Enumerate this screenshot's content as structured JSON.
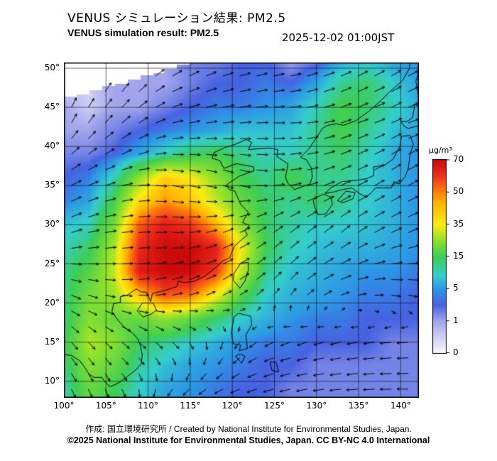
{
  "header": {
    "title_ja": "VENUS シミュレーション結果: PM2.5",
    "title_en": "VENUS simulation result: PM2.5",
    "timestamp": "2025-12-02 01:00JST"
  },
  "footer": {
    "credit": "作成: 国立環境研究所 / Created by National Institute for Environmental Studies, Japan.",
    "license": "©2025 National Institute for Environmental Studies, Japan. CC BY-NC 4.0 International"
  },
  "colorbar": {
    "unit": "µg/m³",
    "ticks": [
      "70",
      "50",
      "35",
      "15",
      "5",
      "1",
      "0"
    ],
    "tick_values_bottom_up": [
      0,
      1,
      5,
      15,
      35,
      50,
      70
    ],
    "stops": [
      {
        "v": 0,
        "c": [
          250,
          250,
          253
        ]
      },
      {
        "v": 1,
        "c": [
          162,
          165,
          235
        ]
      },
      {
        "v": 3,
        "c": [
          70,
          98,
          225
        ]
      },
      {
        "v": 5,
        "c": [
          45,
          150,
          230
        ]
      },
      {
        "v": 9,
        "c": [
          52,
          205,
          205
        ]
      },
      {
        "v": 15,
        "c": [
          62,
          205,
          85
        ]
      },
      {
        "v": 25,
        "c": [
          140,
          225,
          45
        ]
      },
      {
        "v": 35,
        "c": [
          252,
          235,
          20
        ]
      },
      {
        "v": 45,
        "c": [
          255,
          180,
          0
        ]
      },
      {
        "v": 50,
        "c": [
          255,
          130,
          10
        ]
      },
      {
        "v": 60,
        "c": [
          238,
          50,
          30
        ]
      },
      {
        "v": 70,
        "c": [
          205,
          10,
          10
        ]
      }
    ]
  },
  "map": {
    "lat_ticks": [
      "50°",
      "45°",
      "40°",
      "35°",
      "30°",
      "25°",
      "20°",
      "15°",
      "10°"
    ],
    "lon_ticks": [
      "100°",
      "105°",
      "110°",
      "115°",
      "120°",
      "125°",
      "130°",
      "135°",
      "140°"
    ],
    "grid_interval_deg": 5,
    "lon_range": [
      100,
      142.2
    ],
    "lat_range": [
      7.9,
      50.7
    ],
    "no_data_boundary": {
      "from": [
        100,
        46.3
      ],
      "slope": 0.3,
      "step": 1.5
    },
    "coastlines": [
      [
        [
          121.7,
          40.9
        ],
        [
          120.4,
          40.3
        ],
        [
          119,
          39.8
        ],
        [
          117.8,
          39.2
        ],
        [
          117.6,
          38.5
        ],
        [
          118.5,
          38.2
        ],
        [
          119,
          37.2
        ],
        [
          120.5,
          37.8
        ],
        [
          122.5,
          37.4
        ],
        [
          122.6,
          36.9
        ],
        [
          120.8,
          36.2
        ],
        [
          119.3,
          35.1
        ],
        [
          119.6,
          34.5
        ],
        [
          120.3,
          34.3
        ],
        [
          121,
          32.6
        ],
        [
          121.9,
          31.6
        ],
        [
          121.2,
          30.3
        ],
        [
          122,
          29.9
        ],
        [
          121.5,
          29.2
        ],
        [
          121.8,
          28.7
        ],
        [
          120.9,
          27.9
        ],
        [
          120.2,
          27.2
        ],
        [
          119.7,
          25.8
        ],
        [
          118.9,
          25.4
        ],
        [
          118.1,
          24.6
        ],
        [
          116.7,
          23.4
        ],
        [
          115.5,
          22.8
        ],
        [
          114.3,
          22.6
        ],
        [
          113.6,
          22.8
        ],
        [
          113.4,
          22.1
        ],
        [
          112.5,
          21.8
        ],
        [
          111.6,
          21.5
        ],
        [
          110.5,
          21.2
        ],
        [
          110.3,
          20.2
        ],
        [
          109.8,
          21.4
        ],
        [
          109.2,
          21.4
        ],
        [
          108.6,
          21.8
        ],
        [
          107.5,
          21
        ],
        [
          106.7,
          20.8
        ],
        [
          106.7,
          20.1
        ],
        [
          105.9,
          19.9
        ],
        [
          105.7,
          18.9
        ],
        [
          106.5,
          17.7
        ],
        [
          107.2,
          16.9
        ],
        [
          108.1,
          16.2
        ],
        [
          108.8,
          15.4
        ],
        [
          109.1,
          14.5
        ],
        [
          109.3,
          13.4
        ],
        [
          109.2,
          12.3
        ],
        [
          108.6,
          11.5
        ],
        [
          107.5,
          10.6
        ],
        [
          106.5,
          9.8
        ],
        [
          105.5,
          9.3
        ],
        [
          104.9,
          9.9
        ],
        [
          104.5,
          10.5
        ],
        [
          103.6,
          10.5
        ],
        [
          103,
          10.9
        ],
        [
          102.4,
          11.9
        ],
        [
          101.9,
          12.6
        ],
        [
          100.9,
          13.3
        ],
        [
          100.1,
          13.4
        ],
        [
          100,
          12.4
        ],
        [
          99.6,
          11.4
        ],
        [
          99.2,
          10.3
        ],
        [
          98.7,
          9.5
        ]
      ],
      [
        [
          121.7,
          40.9
        ],
        [
          122.3,
          40.5
        ],
        [
          121.9,
          39.6
        ],
        [
          123,
          39.7
        ],
        [
          124.3,
          39.8
        ],
        [
          125.4,
          39.6
        ],
        [
          125.3,
          38.7
        ],
        [
          126.6,
          37.8
        ],
        [
          126.5,
          37
        ],
        [
          126.3,
          36.1
        ],
        [
          126.6,
          35.3
        ],
        [
          127.4,
          34.5
        ],
        [
          128.4,
          34.9
        ],
        [
          129.2,
          35.2
        ],
        [
          129.5,
          36.1
        ],
        [
          129.4,
          37.2
        ],
        [
          128.8,
          38.3
        ],
        [
          128.1,
          38.6
        ],
        [
          129.1,
          39.7
        ],
        [
          129.8,
          40.8
        ],
        [
          130.7,
          42.3
        ],
        [
          131.3,
          42.7
        ],
        [
          132.4,
          42.9
        ],
        [
          133.2,
          42.7
        ],
        [
          134.7,
          43.3
        ],
        [
          136.1,
          44.4
        ],
        [
          137.7,
          45.9
        ],
        [
          138.6,
          46.9
        ],
        [
          140.2,
          48.4
        ],
        [
          141,
          49.9
        ],
        [
          141.2,
          51.2
        ]
      ],
      [
        [
          130.2,
          31.3
        ],
        [
          131.1,
          31.4
        ],
        [
          131.9,
          32.6
        ],
        [
          131.7,
          33.5
        ],
        [
          130.9,
          33.9
        ],
        [
          130.2,
          33.6
        ],
        [
          129.6,
          33.1
        ],
        [
          129.8,
          32.2
        ],
        [
          130.2,
          31.3
        ]
      ],
      [
        [
          132.5,
          33.1
        ],
        [
          133.1,
          32.8
        ],
        [
          134.3,
          33.3
        ],
        [
          134.6,
          34.1
        ],
        [
          133.5,
          34.3
        ],
        [
          132.5,
          33.1
        ]
      ],
      [
        [
          131,
          34
        ],
        [
          131.7,
          34.7
        ],
        [
          133,
          35.5
        ],
        [
          134.9,
          35.7
        ],
        [
          136,
          35.9
        ],
        [
          136.8,
          36.3
        ],
        [
          136.8,
          37.4
        ],
        [
          138.1,
          37.6
        ],
        [
          139.1,
          38.4
        ],
        [
          139.9,
          40
        ],
        [
          140.1,
          41.3
        ],
        [
          141.1,
          41.4
        ],
        [
          141.5,
          40.3
        ],
        [
          141.1,
          38.9
        ],
        [
          140.9,
          37.2
        ],
        [
          140.5,
          36.1
        ],
        [
          139.8,
          35.2
        ],
        [
          139.2,
          35.5
        ],
        [
          138.9,
          34.7
        ],
        [
          138,
          34.7
        ],
        [
          137,
          34.7
        ],
        [
          136.6,
          34.2
        ],
        [
          135.9,
          33.5
        ],
        [
          135.1,
          34
        ],
        [
          134.2,
          34.7
        ],
        [
          133.1,
          34.5
        ],
        [
          132.1,
          34.2
        ],
        [
          131,
          34
        ]
      ],
      [
        [
          140.4,
          42.6
        ],
        [
          140,
          43.2
        ],
        [
          140.8,
          43.2
        ],
        [
          141.4,
          43.7
        ],
        [
          141.6,
          44.9
        ],
        [
          141.6,
          45.4
        ],
        [
          142.8,
          44.8
        ],
        [
          144.2,
          44.1
        ],
        [
          145.3,
          44.3
        ],
        [
          145.5,
          43.6
        ],
        [
          145,
          43
        ],
        [
          143.9,
          42.9
        ],
        [
          143.2,
          42
        ],
        [
          141.9,
          42.6
        ],
        [
          140.9,
          42.3
        ],
        [
          140.4,
          42.6
        ]
      ],
      [
        [
          121.9,
          25.2
        ],
        [
          121,
          25.1
        ],
        [
          120.2,
          23.8
        ],
        [
          120.1,
          22.9
        ],
        [
          120.9,
          21.9
        ],
        [
          121.5,
          22.8
        ],
        [
          121.9,
          24.2
        ],
        [
          121.9,
          25.2
        ]
      ],
      [
        [
          109.3,
          20
        ],
        [
          110.6,
          20
        ],
        [
          111,
          19.1
        ],
        [
          110.4,
          18.6
        ],
        [
          109.4,
          18.2
        ],
        [
          108.7,
          19
        ],
        [
          109.3,
          20
        ]
      ],
      [
        [
          119.9,
          16.3
        ],
        [
          120.2,
          18.2
        ],
        [
          120.7,
          18.7
        ],
        [
          122.2,
          18.3
        ],
        [
          122.3,
          17.2
        ],
        [
          121.6,
          15.9
        ],
        [
          121.8,
          14.2
        ],
        [
          120.8,
          13.9
        ],
        [
          121,
          14.6
        ],
        [
          120.1,
          14.8
        ],
        [
          119.9,
          16.3
        ]
      ],
      [
        [
          142.2,
          46
        ],
        [
          141.8,
          48.3
        ],
        [
          142.4,
          50.5
        ],
        [
          143.1,
          51.5
        ],
        [
          143.3,
          49.8
        ],
        [
          142.6,
          47.8
        ],
        [
          142.2,
          46
        ]
      ],
      [
        [
          120.9,
          13.5
        ],
        [
          120.4,
          13.2
        ],
        [
          121.1,
          12.3
        ],
        [
          121.5,
          13.2
        ],
        [
          120.9,
          13.5
        ]
      ],
      [
        [
          124.5,
          12.5
        ],
        [
          125.2,
          12.4
        ],
        [
          125.5,
          11.2
        ],
        [
          124.7,
          11.4
        ],
        [
          124.5,
          12.5
        ]
      ]
    ]
  },
  "chart_data": {
    "type": "heatmap",
    "title": "VENUS simulation result: PM2.5",
    "variable": "PM2.5",
    "unit": "µg/m³",
    "timestamp": "2025-12-02 01:00JST",
    "lon": [
      100,
      103,
      106,
      109,
      112,
      115,
      118,
      121,
      124,
      127,
      130,
      133,
      136,
      139,
      142,
      145
    ],
    "lat": [
      51,
      48,
      45,
      42,
      39,
      36,
      33,
      30,
      27,
      24,
      21,
      18,
      15,
      12,
      9
    ],
    "values": [
      [
        0.5,
        0.5,
        0.5,
        1,
        1,
        2,
        2,
        3,
        3,
        1,
        2,
        6,
        8,
        6,
        5,
        4
      ],
      [
        0.5,
        0.5,
        1,
        1,
        1,
        2,
        3,
        3,
        4,
        3,
        6,
        12,
        14,
        9,
        6,
        5
      ],
      [
        1,
        0.5,
        1,
        1,
        2,
        3,
        4,
        4,
        5,
        6,
        10,
        16,
        14,
        10,
        7,
        5
      ],
      [
        1,
        1,
        2,
        3,
        4,
        5,
        6,
        8,
        8,
        8,
        12,
        16,
        12,
        8,
        6,
        5
      ],
      [
        2,
        2,
        3,
        6,
        10,
        14,
        16,
        12,
        10,
        10,
        12,
        14,
        10,
        7,
        5,
        4
      ],
      [
        3,
        4,
        10,
        25,
        40,
        35,
        25,
        16,
        12,
        16,
        12,
        12,
        9,
        7,
        5,
        4
      ],
      [
        4,
        6,
        16,
        38,
        48,
        42,
        30,
        20,
        14,
        12,
        14,
        12,
        9,
        7,
        5,
        4
      ],
      [
        8,
        10,
        22,
        55,
        65,
        60,
        45,
        25,
        14,
        11,
        9,
        9,
        8,
        7,
        5,
        4
      ],
      [
        10,
        14,
        28,
        62,
        70,
        70,
        65,
        35,
        15,
        10,
        8,
        7,
        7,
        6,
        5,
        4
      ],
      [
        12,
        18,
        30,
        65,
        70,
        70,
        60,
        30,
        12,
        8,
        7,
        6,
        5,
        5,
        4,
        3
      ],
      [
        12,
        22,
        26,
        42,
        56,
        52,
        35,
        18,
        9,
        7,
        6,
        5,
        4,
        4,
        3,
        3
      ],
      [
        12,
        24,
        20,
        20,
        25,
        20,
        14,
        9,
        7,
        5,
        4,
        4,
        3,
        3,
        3,
        2
      ],
      [
        14,
        28,
        24,
        14,
        12,
        9,
        7,
        5,
        4,
        4,
        3,
        3,
        3,
        2,
        2,
        2
      ],
      [
        12,
        24,
        20,
        11,
        8,
        6,
        5,
        4,
        3,
        3,
        2,
        2,
        2,
        2,
        2,
        2
      ],
      [
        10,
        20,
        15,
        9,
        6,
        5,
        4,
        3,
        3,
        2,
        2,
        2,
        2,
        2,
        2,
        2
      ]
    ],
    "wind": {
      "lon": [
        100,
        107,
        113,
        120,
        126,
        133,
        139,
        146
      ],
      "lat": [
        50,
        43,
        36,
        29,
        22,
        15,
        8
      ],
      "u": [
        [
          0.3,
          0.5,
          0.8,
          0.9,
          0.9,
          0.9,
          0.8,
          0.9
        ],
        [
          0.4,
          0.7,
          0.9,
          1,
          1,
          0.9,
          0.9,
          0.9
        ],
        [
          0.8,
          0.9,
          1,
          0.9,
          1,
          0.9,
          0.8,
          0.9
        ],
        [
          0.9,
          1,
          1,
          0.9,
          0.8,
          0.8,
          0.9,
          0.9
        ],
        [
          0.8,
          0.9,
          0.9,
          0.8,
          0.6,
          0.9,
          1,
          0.9
        ],
        [
          0.5,
          0.6,
          0.5,
          -0.3,
          -0.8,
          -0.9,
          -1,
          -1
        ],
        [
          0.3,
          0.2,
          -0.5,
          -0.8,
          -0.9,
          -1,
          -1,
          -1
        ]
      ],
      "v": [
        [
          0.9,
          0.8,
          0.5,
          0.3,
          0.2,
          0.4,
          0.5,
          0.3
        ],
        [
          0.8,
          0.6,
          0.2,
          0.1,
          0,
          0.3,
          0.4,
          0.2
        ],
        [
          0.5,
          0.2,
          -0.2,
          -0.3,
          0.1,
          0.4,
          0.5,
          0.4
        ],
        [
          0.3,
          0.1,
          0,
          0.4,
          0.6,
          0.6,
          0.4,
          0.3
        ],
        [
          -0.3,
          0,
          0.3,
          0.5,
          0.7,
          0.3,
          -0.1,
          -0.2
        ],
        [
          -0.6,
          -0.5,
          -0.5,
          -0.5,
          -0.3,
          -0.2,
          -0.1,
          0
        ],
        [
          -0.7,
          -0.6,
          -0.5,
          -0.3,
          -0.2,
          -0.1,
          0,
          0.1
        ]
      ]
    }
  }
}
